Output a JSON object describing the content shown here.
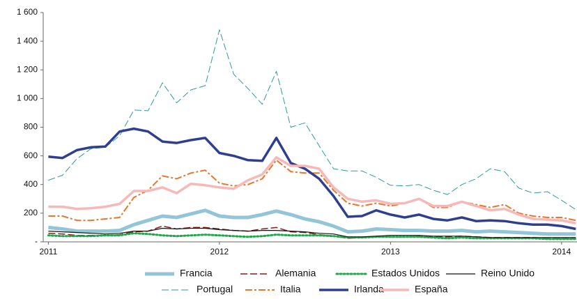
{
  "chart_data": {
    "type": "line",
    "x": [
      2011,
      2011.083,
      2011.167,
      2011.25,
      2011.333,
      2011.417,
      2011.5,
      2011.583,
      2011.667,
      2011.75,
      2011.833,
      2011.917,
      2012,
      2012.083,
      2012.167,
      2012.25,
      2012.333,
      2012.417,
      2012.5,
      2012.583,
      2012.667,
      2012.75,
      2012.833,
      2012.917,
      2013,
      2013.083,
      2013.167,
      2013.25,
      2013.333,
      2013.417,
      2013.5,
      2013.583,
      2013.667,
      2013.75,
      2013.833,
      2013.917,
      2014,
      2014.083
    ],
    "xlim": [
      2010.97,
      2014.09
    ],
    "xticks": [
      2011,
      2012,
      2013,
      2014
    ],
    "ylim": [
      0,
      1600
    ],
    "yticks": [
      {
        "value": 0,
        "label": "-"
      },
      200,
      400,
      600,
      800,
      {
        "value": 1000,
        "label": "1 000"
      },
      {
        "value": 1200,
        "label": "1 200"
      },
      {
        "value": 1400,
        "label": "1 400"
      },
      {
        "value": 1600,
        "label": "1 600"
      }
    ],
    "grid": false,
    "legend": "bottom",
    "series": [
      {
        "name": "Francia",
        "color": "#92c5d8",
        "linestyle": "solid",
        "linewidth": 5,
        "values": [
          100,
          90,
          75,
          75,
          75,
          80,
          120,
          150,
          180,
          170,
          195,
          220,
          180,
          170,
          170,
          190,
          215,
          190,
          160,
          140,
          110,
          70,
          75,
          90,
          85,
          80,
          80,
          75,
          75,
          80,
          70,
          75,
          70,
          65,
          60,
          55,
          55,
          55
        ]
      },
      {
        "name": "Alemania",
        "color": "#8b1a1a",
        "linestyle": "dashed",
        "linewidth": 1.5,
        "values": [
          60,
          55,
          45,
          45,
          45,
          50,
          70,
          75,
          110,
          90,
          100,
          100,
          90,
          80,
          75,
          90,
          100,
          70,
          65,
          50,
          40,
          25,
          30,
          40,
          35,
          35,
          40,
          35,
          35,
          40,
          35,
          30,
          30,
          30,
          30,
          25,
          25,
          25
        ]
      },
      {
        "name": "Estados Unidos",
        "color": "#1ea84a",
        "linestyle": "dotted",
        "linewidth": 3,
        "values": [
          45,
          40,
          40,
          40,
          45,
          45,
          60,
          55,
          45,
          40,
          45,
          50,
          45,
          40,
          35,
          40,
          50,
          45,
          45,
          45,
          40,
          30,
          30,
          35,
          35,
          35,
          35,
          30,
          25,
          30,
          25,
          25,
          25,
          25,
          25,
          20,
          20,
          20
        ]
      },
      {
        "name": "Reino Unido",
        "color": "#111111",
        "linestyle": "solid",
        "linewidth": 1.2,
        "values": [
          75,
          70,
          65,
          60,
          55,
          60,
          75,
          75,
          95,
          90,
          95,
          95,
          85,
          80,
          75,
          80,
          80,
          75,
          70,
          60,
          55,
          35,
          35,
          40,
          45,
          45,
          45,
          40,
          40,
          40,
          35,
          30,
          30,
          30,
          30,
          30,
          30,
          30
        ]
      },
      {
        "name": "Portugal",
        "color": "#2a9d9a",
        "linestyle": "dashed",
        "linewidth": 1,
        "values": [
          430,
          465,
          580,
          650,
          660,
          740,
          920,
          915,
          1110,
          970,
          1060,
          1090,
          1480,
          1170,
          1070,
          960,
          1190,
          800,
          830,
          670,
          510,
          495,
          495,
          450,
          395,
          390,
          400,
          360,
          330,
          400,
          440,
          510,
          490,
          375,
          340,
          350,
          290,
          225
        ]
      },
      {
        "name": "Italia",
        "color": "#e8762d",
        "linestyle": "dashdot",
        "linewidth": 2,
        "values": [
          180,
          180,
          150,
          150,
          160,
          170,
          310,
          360,
          460,
          440,
          480,
          500,
          410,
          390,
          400,
          440,
          570,
          490,
          480,
          480,
          360,
          270,
          250,
          270,
          250,
          270,
          300,
          240,
          240,
          280,
          260,
          240,
          260,
          200,
          180,
          170,
          170,
          150
        ]
      },
      {
        "name": "Irlanda",
        "color": "#2e3f8f",
        "linestyle": "solid",
        "linewidth": 3.5,
        "values": [
          595,
          585,
          640,
          660,
          665,
          770,
          790,
          770,
          700,
          690,
          710,
          725,
          620,
          600,
          570,
          565,
          725,
          550,
          510,
          440,
          320,
          175,
          180,
          220,
          190,
          170,
          190,
          160,
          150,
          170,
          145,
          150,
          145,
          130,
          120,
          120,
          110,
          90
        ]
      },
      {
        "name": "España",
        "color": "#f7b8b8",
        "linestyle": "solid",
        "linewidth": 3.5,
        "values": [
          245,
          245,
          230,
          235,
          245,
          265,
          355,
          355,
          380,
          340,
          405,
          395,
          380,
          370,
          430,
          470,
          590,
          530,
          530,
          510,
          380,
          300,
          280,
          290,
          265,
          270,
          300,
          250,
          250,
          280,
          250,
          220,
          230,
          190,
          160,
          155,
          150,
          130
        ]
      }
    ]
  }
}
